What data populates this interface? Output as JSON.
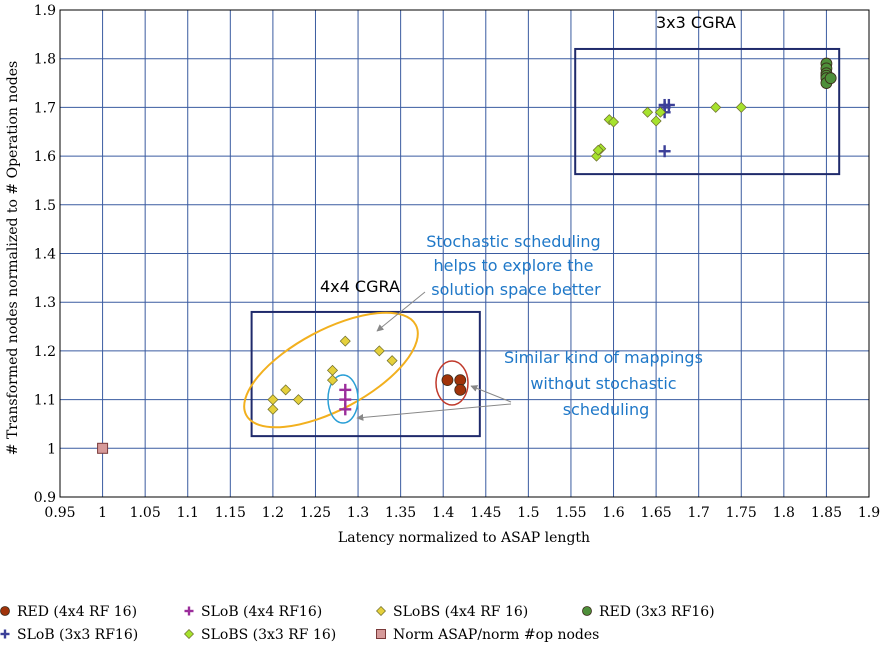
{
  "chart_data": {
    "type": "scatter",
    "xlabel": "Latency normalized to ASAP length",
    "ylabel": "# Transformed nodes normalized to # Operation nodes",
    "xlim": [
      0.95,
      1.9
    ],
    "ylim": [
      0.9,
      1.9
    ],
    "xticks": [
      0.95,
      1,
      1.05,
      1.1,
      1.15,
      1.2,
      1.25,
      1.3,
      1.35,
      1.4,
      1.45,
      1.5,
      1.55,
      1.6,
      1.65,
      1.7,
      1.75,
      1.8,
      1.85,
      1.9
    ],
    "yticks": [
      0.9,
      1,
      1.1,
      1.2,
      1.3,
      1.4,
      1.5,
      1.6,
      1.7,
      1.8,
      1.9
    ],
    "xtick_labels": [
      "0.95",
      "1",
      "1.05",
      "1.1",
      "1.15",
      "1.2",
      "1.25",
      "1.3",
      "1.35",
      "1.4",
      "1.45",
      "1.5",
      "1.55",
      "1.6",
      "1.65",
      "1.7",
      "1.75",
      "1.8",
      "1.85",
      "1.9"
    ],
    "ytick_labels": [
      "0.9",
      "1",
      "1.1",
      "1.2",
      "1.3",
      "1.4",
      "1.5",
      "1.6",
      "1.7",
      "1.8",
      "1.9"
    ],
    "grid": true,
    "legend_position": "bottom",
    "series": [
      {
        "name": "RED (4x4 RF 16)",
        "marker": "circle",
        "color": "#a0330a",
        "points": [
          [
            1.405,
            1.14
          ],
          [
            1.42,
            1.14
          ],
          [
            1.42,
            1.12
          ]
        ]
      },
      {
        "name": "SLoB (4x4 RF16)",
        "marker": "plus",
        "color": "#9b2d9b",
        "points": [
          [
            1.285,
            1.12
          ],
          [
            1.285,
            1.1
          ],
          [
            1.285,
            1.08
          ]
        ]
      },
      {
        "name": "SLoBS (4x4 RF 16)",
        "marker": "diamond",
        "color": "#e5d03c",
        "points": [
          [
            1.2,
            1.1
          ],
          [
            1.2,
            1.08
          ],
          [
            1.215,
            1.12
          ],
          [
            1.23,
            1.1
          ],
          [
            1.27,
            1.16
          ],
          [
            1.27,
            1.14
          ],
          [
            1.285,
            1.22
          ],
          [
            1.325,
            1.2
          ],
          [
            1.34,
            1.18
          ]
        ]
      },
      {
        "name": "RED (3x3 RF16)",
        "marker": "circle",
        "color": "#4e8f3a",
        "points": [
          [
            1.85,
            1.79
          ],
          [
            1.85,
            1.78
          ],
          [
            1.85,
            1.77
          ],
          [
            1.85,
            1.765
          ],
          [
            1.85,
            1.76
          ],
          [
            1.85,
            1.75
          ],
          [
            1.855,
            1.76
          ]
        ]
      },
      {
        "name": "SLoB (3x3 RF16)",
        "marker": "plus",
        "color": "#3b3f98",
        "points": [
          [
            1.66,
            1.705
          ],
          [
            1.66,
            1.7
          ],
          [
            1.66,
            1.69
          ],
          [
            1.665,
            1.705
          ],
          [
            1.66,
            1.61
          ]
        ]
      },
      {
        "name": "SLoBS (3x3 RF 16)",
        "marker": "diamond",
        "color": "#a6e22e",
        "points": [
          [
            1.58,
            1.6
          ],
          [
            1.585,
            1.615
          ],
          [
            1.582,
            1.612
          ],
          [
            1.595,
            1.675
          ],
          [
            1.6,
            1.67
          ],
          [
            1.64,
            1.69
          ],
          [
            1.65,
            1.672
          ],
          [
            1.655,
            1.69
          ],
          [
            1.72,
            1.7
          ],
          [
            1.75,
            1.7
          ]
        ]
      },
      {
        "name": "Norm ASAP/norm #op nodes",
        "marker": "square",
        "color": "#d69a9a",
        "points": [
          [
            1,
            1
          ]
        ]
      }
    ],
    "annotations": [
      {
        "text": "3x3 CGRA"
      },
      {
        "text": "4x4 CGRA"
      },
      {
        "lines": [
          "Stochastic scheduling",
          "helps to explore the",
          "solution space better"
        ]
      },
      {
        "lines": [
          "Similar kind of mappings",
          "without stochastic",
          "scheduling"
        ]
      }
    ]
  }
}
